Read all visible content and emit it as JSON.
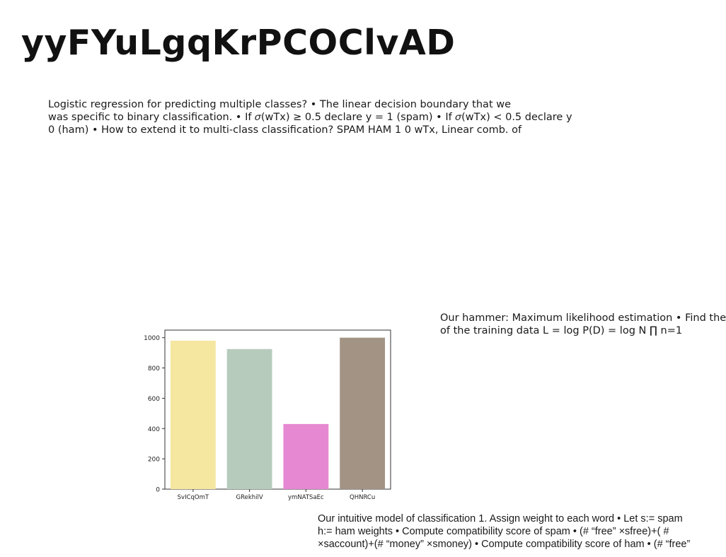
{
  "title": "yyFYuLgqKrPCOClvAD",
  "block1": {
    "lines": [
      "Logistic regression for predicting multiple classes? • The linear decision boundary that we",
      "was specific to binary classification. • If 𝜎(w𝖳x) ≥ 0.5 declare y = 1 (spam) • If 𝜎(w𝖳x) < 0.5 declare y",
      "0 (ham) • How to extend it to multi-class classification? SPAM HAM 1 0 wTx, Linear comb. of"
    ]
  },
  "block2": {
    "lines": [
      "Our hammer: Maximum likelihood estimation • Find the",
      "of the training data L = log P(D) = log N ∏ n=1"
    ]
  },
  "block3": {
    "lines": [
      "Our intuitive model of classification 1. Assign weight to each word • Let s:= spam",
      "h:= ham weights • Compute compatibility score of spam • (# “free” ×sfree)+( #",
      "×saccount)+(# “money” ×smoney) • Compute compatibility score of ham • (# “free”"
    ]
  },
  "chart_data": {
    "type": "bar",
    "categories": [
      "SvICqOmT",
      "GRekhilV",
      "ymNATSaEc",
      "QHNRCu"
    ],
    "values": [
      980,
      925,
      430,
      1000
    ],
    "colors": [
      "#f5e6a0",
      "#b7cbbd",
      "#e688d2",
      "#a29385"
    ],
    "title": "",
    "xlabel": "",
    "ylabel": "",
    "ylim": [
      0,
      1050
    ],
    "yticks": [
      0,
      200,
      400,
      600,
      800,
      1000
    ],
    "grid": false
  }
}
